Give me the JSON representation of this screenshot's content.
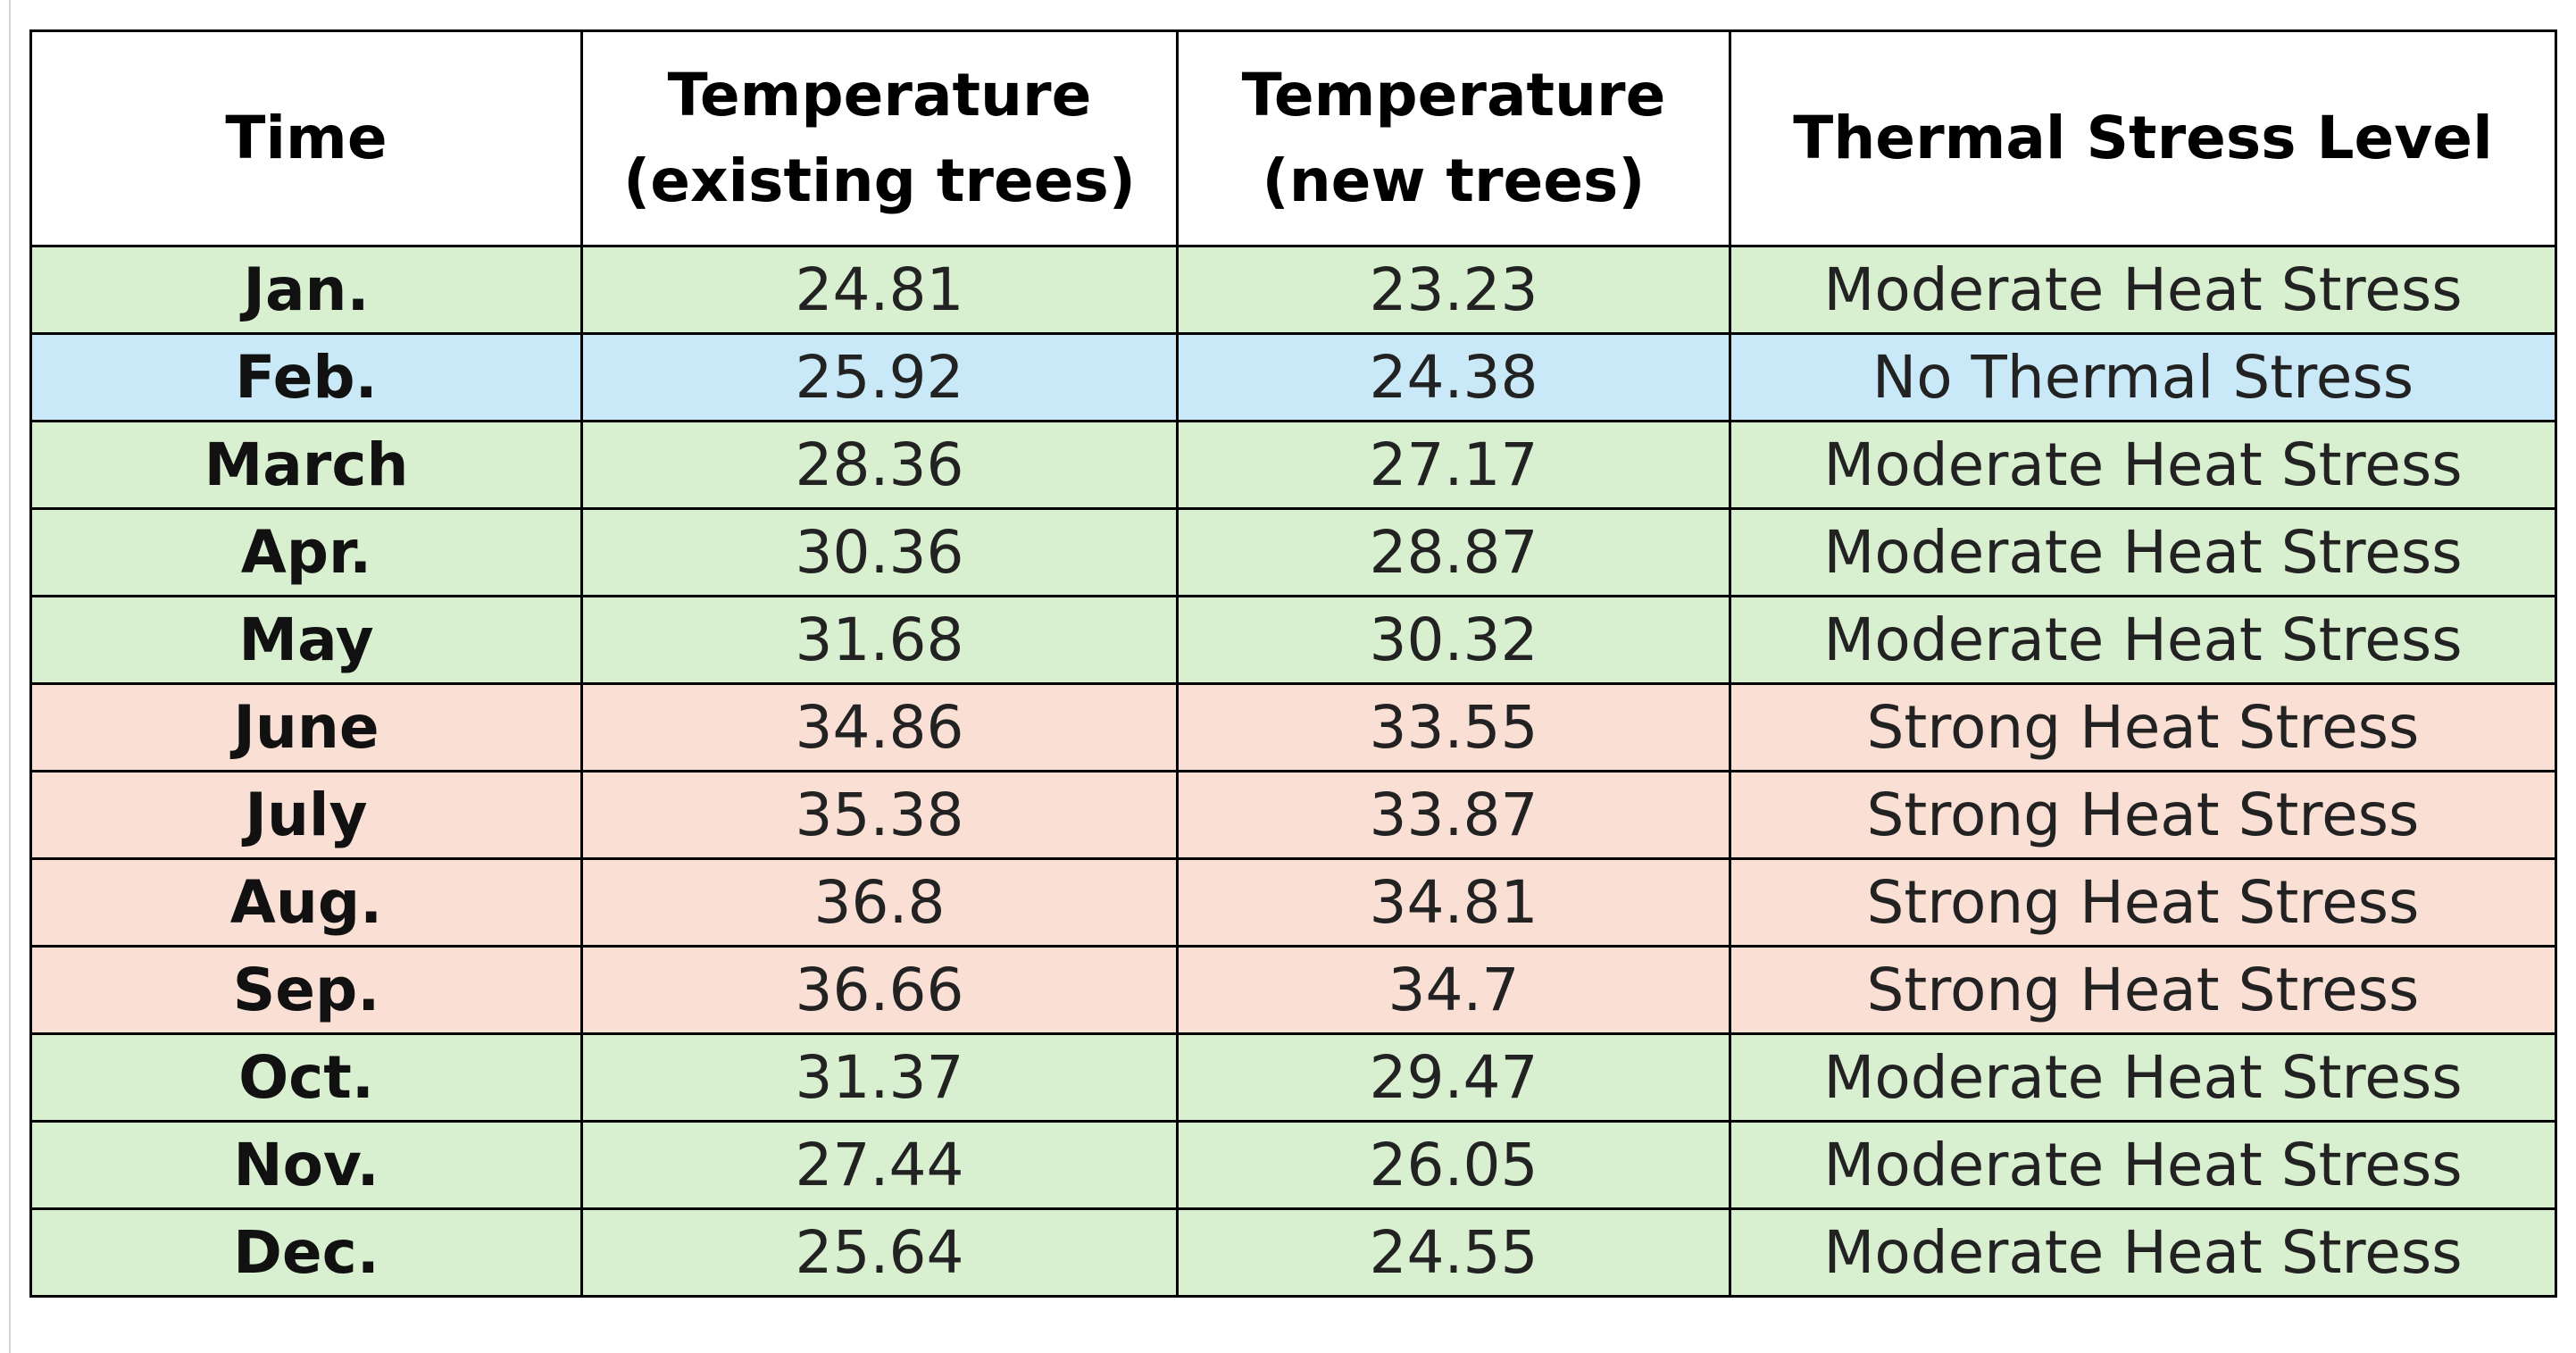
{
  "header": {
    "columns": [
      "Time",
      "Temperature (existing trees)",
      "Temperature (new trees)",
      "Thermal Stress Level"
    ]
  },
  "table": {
    "rows": [
      [
        "Jan.",
        24.81,
        23.23,
        "Moderate Heat Stress"
      ],
      [
        "Feb.",
        25.92,
        24.38,
        "No Thermal Stress"
      ],
      [
        "March",
        28.36,
        27.17,
        "Moderate Heat Stress"
      ],
      [
        "Apr.",
        30.36,
        28.87,
        "Moderate Heat Stress"
      ],
      [
        "May",
        31.68,
        30.32,
        "Moderate Heat Stress"
      ],
      [
        "June",
        34.86,
        33.55,
        "Strong Heat Stress"
      ],
      [
        "July",
        35.38,
        33.87,
        "Strong Heat Stress"
      ],
      [
        "Aug.",
        36.8,
        34.81,
        "Strong Heat Stress"
      ],
      [
        "Sep.",
        36.66,
        34.7,
        "Strong Heat Stress"
      ],
      [
        "Oct.",
        31.37,
        29.47,
        "Moderate Heat Stress"
      ],
      [
        "Nov.",
        27.44,
        26.05,
        "Moderate Heat Stress"
      ],
      [
        "Dec.",
        25.64,
        24.55,
        "Moderate Heat Stress"
      ]
    ]
  }
}
